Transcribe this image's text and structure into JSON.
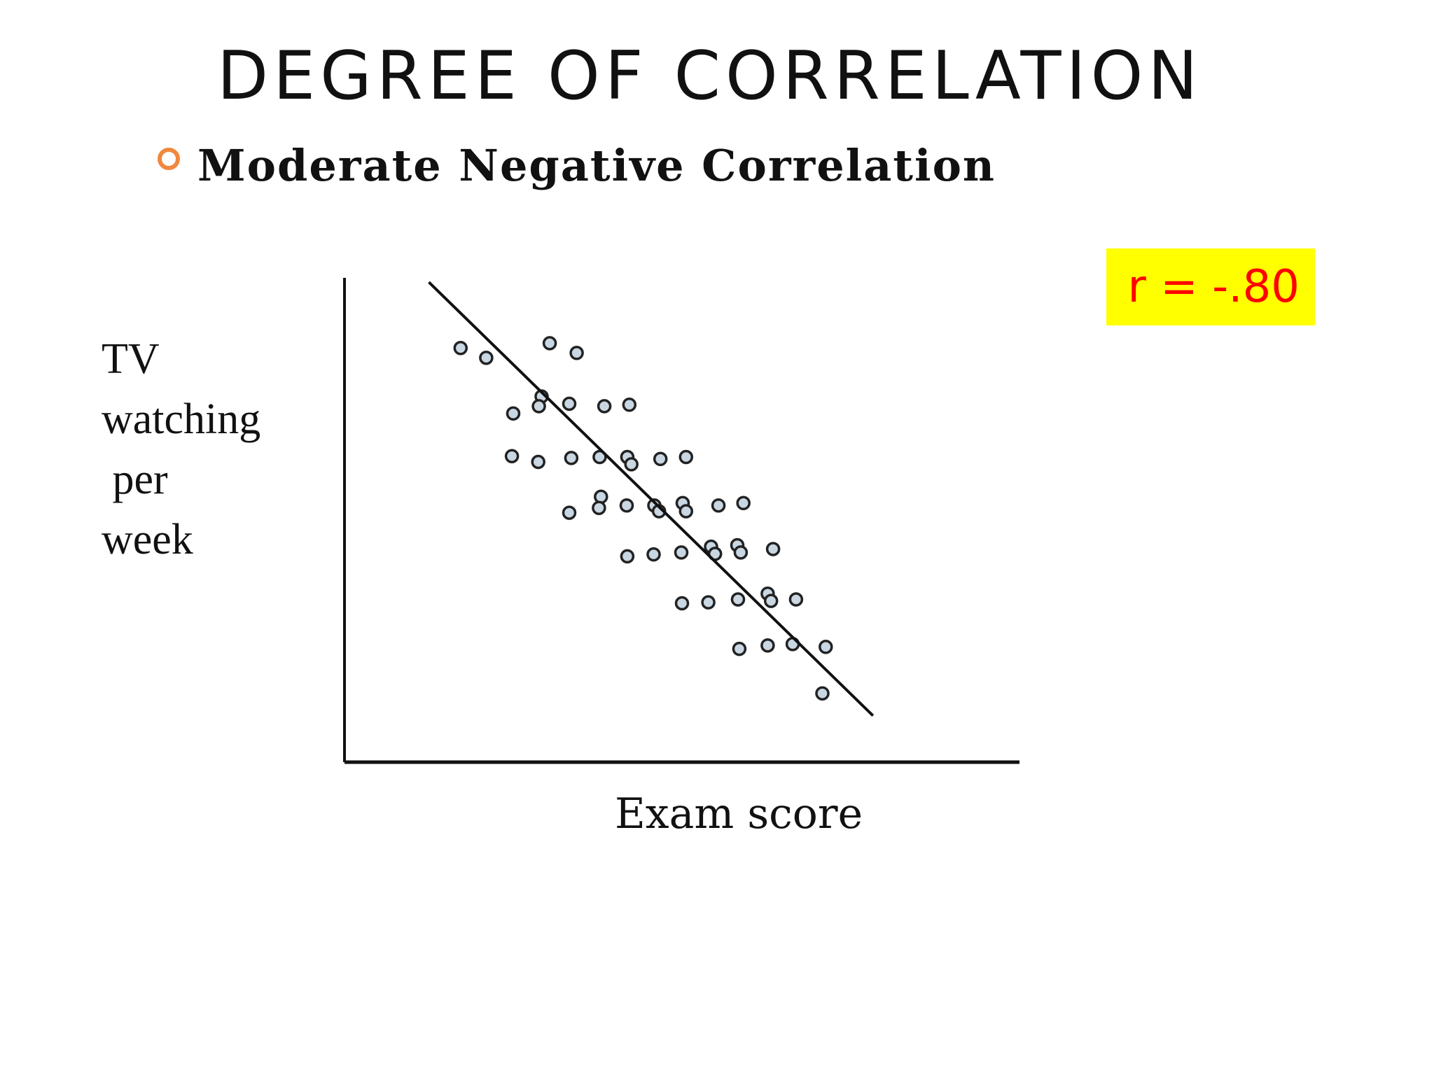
{
  "slide": {
    "title": "DEGREE OF CORRELATION",
    "bullet": "Moderate Negative Correlation",
    "badge": "r = -.80",
    "colors": {
      "bullet": "#f0883e",
      "badge_bg": "#ffff00",
      "badge_text": "#ff0000",
      "marker_fill": "#c9d7e3"
    }
  },
  "chart_data": {
    "type": "scatter",
    "title": "",
    "xlabel": "Exam score",
    "ylabel_lines": [
      "TV",
      "watching",
      " per",
      "week"
    ],
    "axis_ticks": false,
    "grid": false,
    "xlim": [
      0,
      100
    ],
    "ylim": [
      0,
      100
    ],
    "points": [
      {
        "x": 17.2,
        "y": 85.5
      },
      {
        "x": 21.0,
        "y": 83.5
      },
      {
        "x": 30.4,
        "y": 86.5
      },
      {
        "x": 34.4,
        "y": 84.5
      },
      {
        "x": 29.2,
        "y": 75.5
      },
      {
        "x": 25.0,
        "y": 72.0
      },
      {
        "x": 28.8,
        "y": 73.5
      },
      {
        "x": 33.3,
        "y": 74.0
      },
      {
        "x": 38.5,
        "y": 73.5
      },
      {
        "x": 42.2,
        "y": 73.8
      },
      {
        "x": 24.8,
        "y": 63.2
      },
      {
        "x": 28.7,
        "y": 62.0
      },
      {
        "x": 33.6,
        "y": 62.8
      },
      {
        "x": 37.8,
        "y": 63.0
      },
      {
        "x": 41.9,
        "y": 63.0
      },
      {
        "x": 42.5,
        "y": 61.5
      },
      {
        "x": 46.8,
        "y": 62.6
      },
      {
        "x": 50.6,
        "y": 63.0
      },
      {
        "x": 38.0,
        "y": 54.8
      },
      {
        "x": 37.7,
        "y": 52.5
      },
      {
        "x": 33.3,
        "y": 51.5
      },
      {
        "x": 41.8,
        "y": 53.0
      },
      {
        "x": 45.9,
        "y": 53.0
      },
      {
        "x": 46.6,
        "y": 51.8
      },
      {
        "x": 50.1,
        "y": 53.5
      },
      {
        "x": 50.6,
        "y": 51.8
      },
      {
        "x": 55.4,
        "y": 53.0
      },
      {
        "x": 59.1,
        "y": 53.5
      },
      {
        "x": 41.9,
        "y": 42.5
      },
      {
        "x": 45.8,
        "y": 42.9
      },
      {
        "x": 49.9,
        "y": 43.3
      },
      {
        "x": 54.3,
        "y": 44.5
      },
      {
        "x": 54.9,
        "y": 43.0
      },
      {
        "x": 58.2,
        "y": 44.8
      },
      {
        "x": 58.7,
        "y": 43.3
      },
      {
        "x": 63.5,
        "y": 44.0
      },
      {
        "x": 50.0,
        "y": 32.8
      },
      {
        "x": 53.9,
        "y": 33.0
      },
      {
        "x": 58.3,
        "y": 33.6
      },
      {
        "x": 62.7,
        "y": 34.8
      },
      {
        "x": 63.2,
        "y": 33.3
      },
      {
        "x": 66.9,
        "y": 33.6
      },
      {
        "x": 58.5,
        "y": 23.4
      },
      {
        "x": 62.7,
        "y": 24.1
      },
      {
        "x": 66.4,
        "y": 24.4
      },
      {
        "x": 71.3,
        "y": 23.8
      },
      {
        "x": 70.8,
        "y": 14.2
      }
    ],
    "trendline": {
      "x": [
        12.5,
        78.3
      ],
      "y": [
        99.1,
        9.6
      ]
    }
  }
}
